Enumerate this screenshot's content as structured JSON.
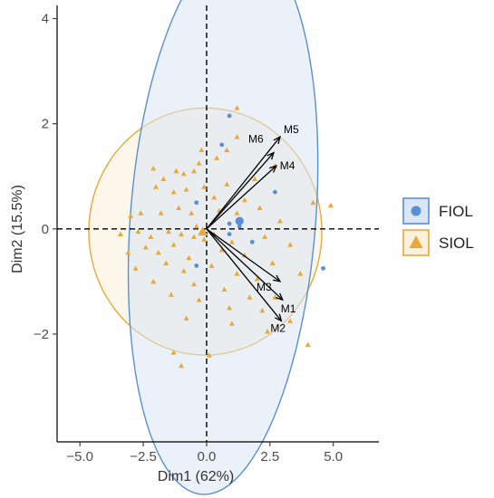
{
  "chart_data": {
    "type": "scatter",
    "title": "",
    "xlabel": "Dim1 (62%)",
    "ylabel": "Dim2 (15.5%)",
    "xlim": [
      -5.9,
      6.8
    ],
    "ylim": [
      -4.05,
      4.25
    ],
    "xticks": [
      -5.0,
      -2.5,
      0.0,
      2.5,
      5.0
    ],
    "xtick_labels": [
      "−5.0",
      "−2.5",
      "0.0",
      "2.5",
      "5.0"
    ],
    "yticks": [
      -2,
      0,
      2,
      4
    ],
    "ytick_labels": [
      "−2",
      "0",
      "2",
      "4"
    ],
    "grid": false,
    "legend_position": "right",
    "reference_lines": {
      "x": 0,
      "y": 0,
      "style": "dashed"
    },
    "groups": [
      {
        "name": "FIOL",
        "marker": "circle",
        "color": "#5b8fd4",
        "fill": "#dbe5f3",
        "centroid": [
          1.3,
          0.15
        ],
        "ellipse": {
          "cx": 0.65,
          "cy": 0.2,
          "rx": 5.35,
          "ry": 3.6,
          "angle_deg": 75
        },
        "points": [
          [
            0.9,
            2.15
          ],
          [
            0.6,
            1.6
          ],
          [
            2.7,
            0.7
          ],
          [
            -0.4,
            0.5
          ],
          [
            0.9,
            -0.1
          ],
          [
            1.3,
            0.05
          ],
          [
            4.6,
            -0.75
          ],
          [
            -0.4,
            -0.7
          ],
          [
            1.8,
            -0.25
          ],
          [
            0.9,
            0.1
          ]
        ]
      },
      {
        "name": "SIOL",
        "marker": "triangle",
        "color": "#e8a93a",
        "fill": "#fbf0db",
        "centroid": [
          -0.15,
          -0.05
        ],
        "ellipse": {
          "cx": -0.05,
          "cy": -0.05,
          "rx": 4.6,
          "ry": 2.35,
          "angle_deg": 0
        },
        "points": [
          [
            1.2,
            2.3
          ],
          [
            -2.1,
            1.15
          ],
          [
            -1.2,
            1.1
          ],
          [
            -0.9,
            1.05
          ],
          [
            -1.7,
            0.95
          ],
          [
            -0.5,
            1.1
          ],
          [
            -0.3,
            1.25
          ],
          [
            -0.2,
            1.5
          ],
          [
            0.4,
            1.35
          ],
          [
            0.8,
            1.5
          ],
          [
            1.2,
            1.75
          ],
          [
            2.7,
            1.2
          ],
          [
            1.9,
            0.95
          ],
          [
            -2.0,
            0.8
          ],
          [
            -1.3,
            0.7
          ],
          [
            -0.8,
            0.75
          ],
          [
            -0.1,
            0.8
          ],
          [
            0.3,
            0.6
          ],
          [
            0.8,
            0.85
          ],
          [
            1.5,
            0.55
          ],
          [
            2.9,
            0.15
          ],
          [
            4.9,
            0.45
          ],
          [
            -3.0,
            0.25
          ],
          [
            -2.6,
            0.3
          ],
          [
            -1.8,
            0.3
          ],
          [
            -1.1,
            0.4
          ],
          [
            -0.6,
            0.3
          ],
          [
            0.5,
            0.35
          ],
          [
            1.2,
            0.3
          ],
          [
            2.1,
            0.4
          ],
          [
            4.2,
            0.5
          ],
          [
            -3.4,
            -0.1
          ],
          [
            -2.7,
            -0.05
          ],
          [
            -2.2,
            -0.15
          ],
          [
            -1.5,
            -0.05
          ],
          [
            -1.0,
            -0.1
          ],
          [
            -0.5,
            -0.15
          ],
          [
            0.3,
            -0.1
          ],
          [
            1.0,
            -0.25
          ],
          [
            2.3,
            -0.15
          ],
          [
            3.3,
            -0.3
          ],
          [
            -3.1,
            -0.45
          ],
          [
            -2.4,
            -0.35
          ],
          [
            -1.9,
            -0.45
          ],
          [
            -1.3,
            -0.3
          ],
          [
            -0.7,
            -0.55
          ],
          [
            0.6,
            -0.4
          ],
          [
            1.5,
            -0.5
          ],
          [
            2.6,
            -0.65
          ],
          [
            -2.8,
            -0.75
          ],
          [
            -1.6,
            -0.65
          ],
          [
            -0.9,
            -0.8
          ],
          [
            0.2,
            -0.7
          ],
          [
            1.2,
            -0.85
          ],
          [
            2.0,
            -0.95
          ],
          [
            3.7,
            -0.85
          ],
          [
            -2.1,
            -1.0
          ],
          [
            -0.5,
            -1.05
          ],
          [
            0.7,
            -1.15
          ],
          [
            1.7,
            -1.3
          ],
          [
            2.7,
            -1.3
          ],
          [
            -1.4,
            -1.25
          ],
          [
            -0.3,
            -1.35
          ],
          [
            0.9,
            -1.5
          ],
          [
            2.2,
            -1.55
          ],
          [
            3.3,
            -1.75
          ],
          [
            -0.8,
            -1.7
          ],
          [
            1.0,
            -1.8
          ],
          [
            2.4,
            -1.95
          ],
          [
            4.0,
            -2.2
          ],
          [
            -1.3,
            -2.35
          ],
          [
            0.1,
            -2.4
          ],
          [
            -1.0,
            -2.6
          ],
          [
            -0.2,
            -0.05
          ],
          [
            -0.4,
            0.05
          ],
          [
            -0.1,
            -0.2
          ]
        ]
      }
    ],
    "vectors": [
      {
        "name": "M5",
        "x": 2.9,
        "y": 1.75
      },
      {
        "name": "M6",
        "x": 2.65,
        "y": 1.45
      },
      {
        "name": "M4",
        "x": 2.75,
        "y": 1.2
      },
      {
        "name": "M3",
        "x": 2.9,
        "y": -1.0
      },
      {
        "name": "M1",
        "x": 3.0,
        "y": -1.35
      },
      {
        "name": "M2",
        "x": 2.95,
        "y": -1.75
      }
    ]
  },
  "legend": {
    "items": [
      {
        "label": "FIOL",
        "marker": "circle",
        "color": "#5b8fd4",
        "fill": "#dbe5f3"
      },
      {
        "label": "SIOL",
        "marker": "triangle",
        "color": "#e8a93a",
        "fill": "#fbf0db"
      }
    ]
  }
}
